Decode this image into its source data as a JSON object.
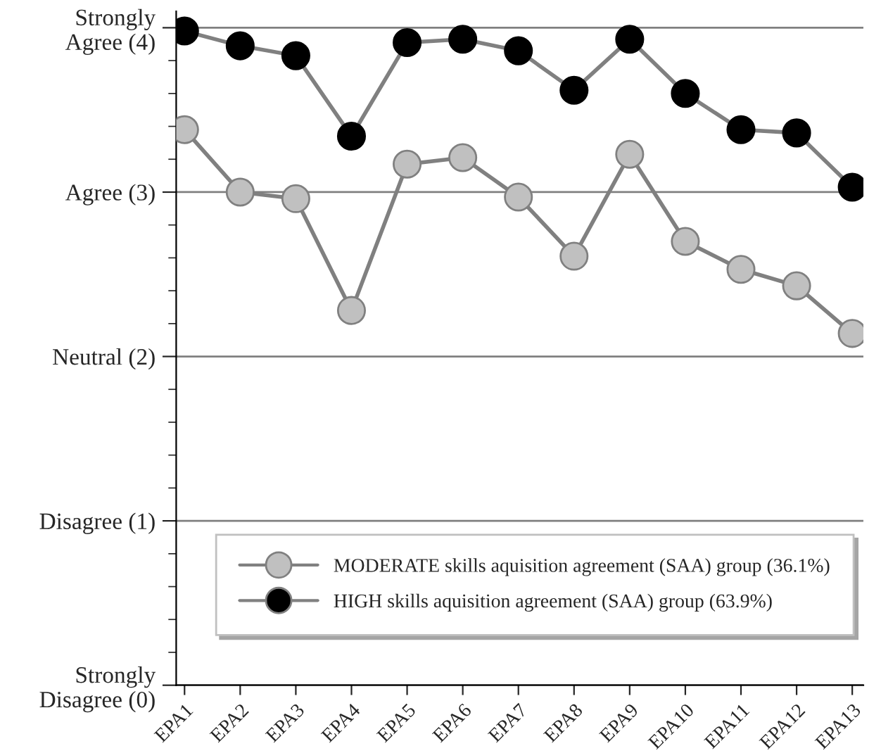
{
  "chart_data": {
    "type": "line",
    "categories": [
      "EPA1",
      "EPA2",
      "EPA3",
      "EPA4",
      "EPA5",
      "EPA6",
      "EPA7",
      "EPA8",
      "EPA9",
      "EPA10",
      "EPA11",
      "EPA12",
      "EPA13"
    ],
    "series": [
      {
        "name": "MODERATE skills aquisition agreement (SAA) group (36.1%)",
        "color": "#c0c0c0",
        "values": [
          3.38,
          3.0,
          2.96,
          2.28,
          3.17,
          3.21,
          2.97,
          2.61,
          3.23,
          2.7,
          2.53,
          2.43,
          2.14
        ]
      },
      {
        "name": "HIGH skills aquisition agreement (SAA) group (63.9%)",
        "color": "#000000",
        "values": [
          3.98,
          3.89,
          3.83,
          3.34,
          3.91,
          3.93,
          3.86,
          3.62,
          3.93,
          3.6,
          3.38,
          3.36,
          3.03
        ]
      }
    ],
    "ylim": [
      0,
      4.1
    ],
    "yticks": [
      {
        "value": 0,
        "label": "Strongly\nDisagree (0)"
      },
      {
        "value": 1,
        "label": "Disagree (1)"
      },
      {
        "value": 2,
        "label": "Neutral (2)"
      },
      {
        "value": 3,
        "label": "Agree (3)"
      },
      {
        "value": 4,
        "label": "Strongly\nAgree (4)"
      }
    ],
    "grid": "y",
    "legend": "bottom right",
    "marker": "circle",
    "line_style": "solid"
  }
}
